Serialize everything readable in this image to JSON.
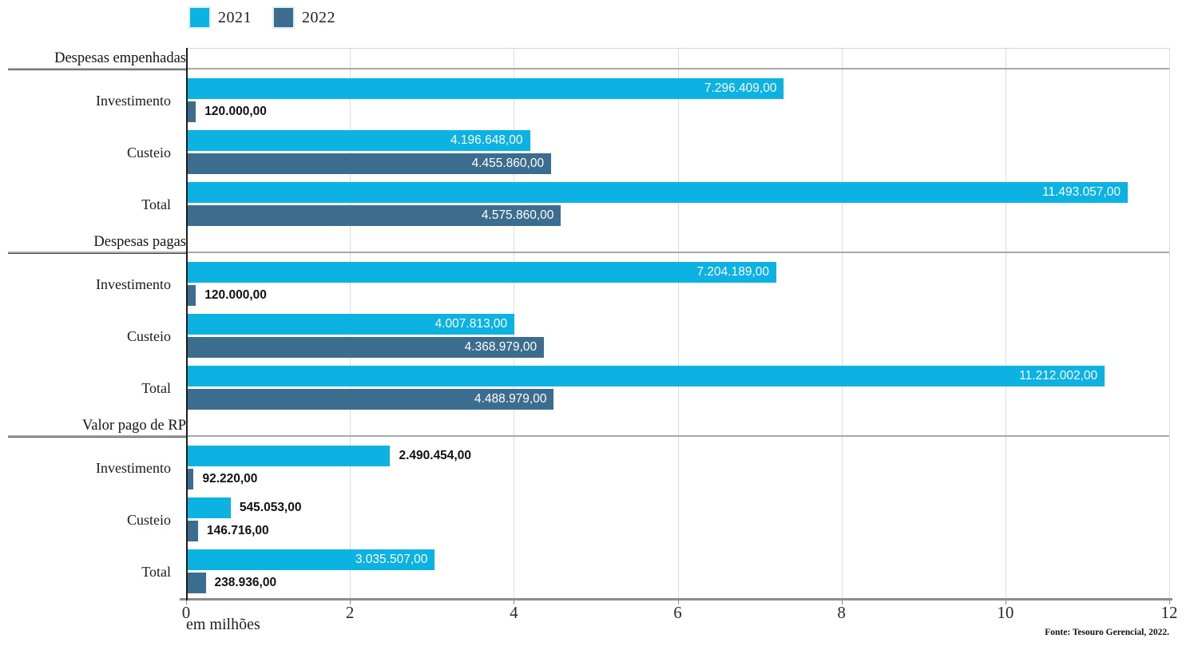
{
  "colors": {
    "series_2021": "#0bb2e2",
    "series_2022": "#3c6c8e",
    "gridline": "#dcdcdc",
    "axis": "#8c8c8c"
  },
  "legend": {
    "items": [
      {
        "label": "2021",
        "color": "#0bb2e2"
      },
      {
        "label": "2022",
        "color": "#3c6c8e"
      }
    ]
  },
  "chart_data": {
    "type": "bar",
    "orientation": "horizontal",
    "title": "",
    "xlabel": "em milhões",
    "ylabel": "",
    "xlim": [
      0,
      12000000
    ],
    "x_ticks": [
      0,
      2,
      4,
      6,
      8,
      10,
      12
    ],
    "x_tick_unit": "millions",
    "grid": true,
    "legend_position": "top-left",
    "source": "Fonte: Tesouro Gerencial, 2022.",
    "series_names": [
      "2021",
      "2022"
    ],
    "sections": [
      {
        "title": "Despesas empenhadas",
        "rows": [
          {
            "label": "Investimento",
            "values": [
              7296409.0,
              120000.0
            ],
            "display": [
              "7.296.409,00",
              "120.000,00"
            ],
            "label_pos": [
              "in",
              "out"
            ]
          },
          {
            "label": "Custeio",
            "values": [
              4196648.0,
              4455860.0
            ],
            "display": [
              "4.196.648,00",
              "4.455.860,00"
            ],
            "label_pos": [
              "in",
              "in"
            ]
          },
          {
            "label": "Total",
            "values": [
              11493057.0,
              4575860.0
            ],
            "display": [
              "11.493.057,00",
              "4.575.860,00"
            ],
            "label_pos": [
              "in",
              "in"
            ]
          }
        ]
      },
      {
        "title": "Despesas pagas",
        "rows": [
          {
            "label": "Investimento",
            "values": [
              7204189.0,
              120000.0
            ],
            "display": [
              "7.204.189,00",
              "120.000,00"
            ],
            "label_pos": [
              "in",
              "out"
            ]
          },
          {
            "label": "Custeio",
            "values": [
              4007813.0,
              4368979.0
            ],
            "display": [
              "4.007.813,00",
              "4.368.979,00"
            ],
            "label_pos": [
              "in",
              "in"
            ]
          },
          {
            "label": "Total",
            "values": [
              11212002.0,
              4488979.0
            ],
            "display": [
              "11.212.002,00",
              "4.488.979,00"
            ],
            "label_pos": [
              "in",
              "in"
            ]
          }
        ]
      },
      {
        "title": "Valor pago de RP",
        "rows": [
          {
            "label": "Investimento",
            "values": [
              2490454.0,
              92220.0
            ],
            "display": [
              "2.490.454,00",
              "92.220,00"
            ],
            "label_pos": [
              "out",
              "out"
            ]
          },
          {
            "label": "Custeio",
            "values": [
              545053.0,
              146716.0
            ],
            "display": [
              "545.053,00",
              "146.716,00"
            ],
            "label_pos": [
              "out",
              "out"
            ]
          },
          {
            "label": "Total",
            "values": [
              3035507.0,
              238936.0
            ],
            "display": [
              "3.035.507,00",
              "238.936,00"
            ],
            "label_pos": [
              "in",
              "out"
            ]
          }
        ]
      }
    ]
  }
}
